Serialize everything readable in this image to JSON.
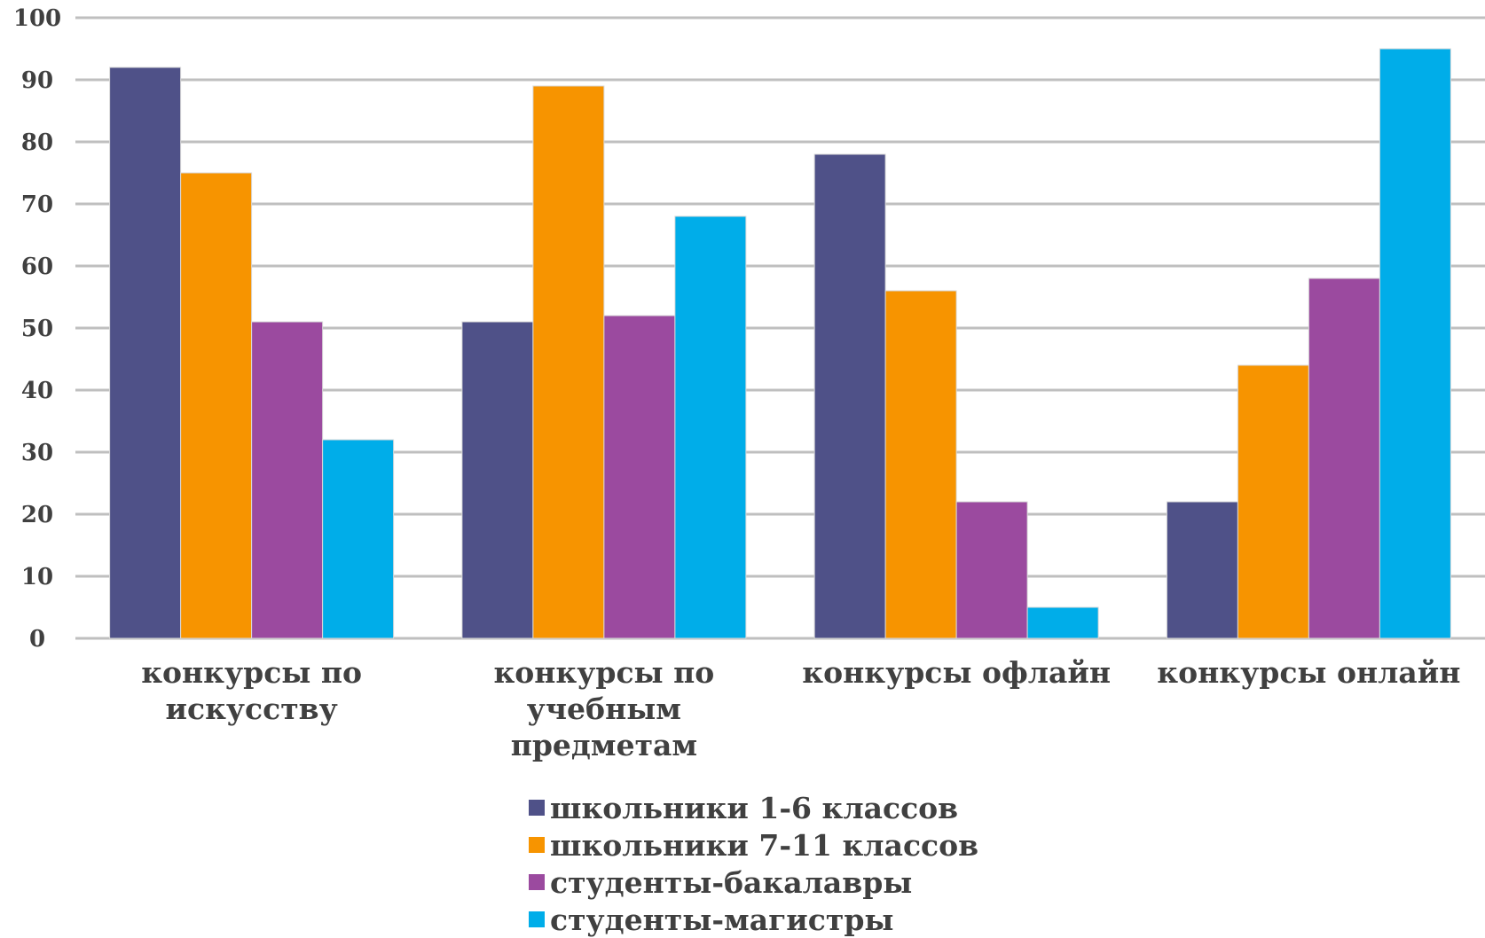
{
  "chart_data": {
    "type": "bar",
    "categories": [
      [
        "конкурсы по",
        "искусству"
      ],
      [
        "конкурсы по",
        "учебным",
        "предметам"
      ],
      [
        "конкурсы офлайн"
      ],
      [
        "конкурсы онлайн"
      ]
    ],
    "series": [
      {
        "name": "школьники 1-6 классов",
        "color": "#4f5188",
        "values": [
          92,
          51,
          78,
          22
        ]
      },
      {
        "name": "школьники 7-11 классов",
        "color": "#f79400",
        "values": [
          75,
          89,
          56,
          44
        ]
      },
      {
        "name": "студенты-бакалавры",
        "color": "#9b4a9f",
        "values": [
          51,
          52,
          22,
          58
        ]
      },
      {
        "name": "студенты-магистры",
        "color": "#00ade9",
        "values": [
          32,
          68,
          5,
          95
        ]
      }
    ],
    "ylim": [
      0,
      100
    ],
    "yticks": [
      "0",
      "10",
      "20",
      "30",
      "40",
      "50",
      "60",
      "70",
      "80",
      "90",
      "100"
    ],
    "grid": true,
    "legend_position": "bottom"
  }
}
